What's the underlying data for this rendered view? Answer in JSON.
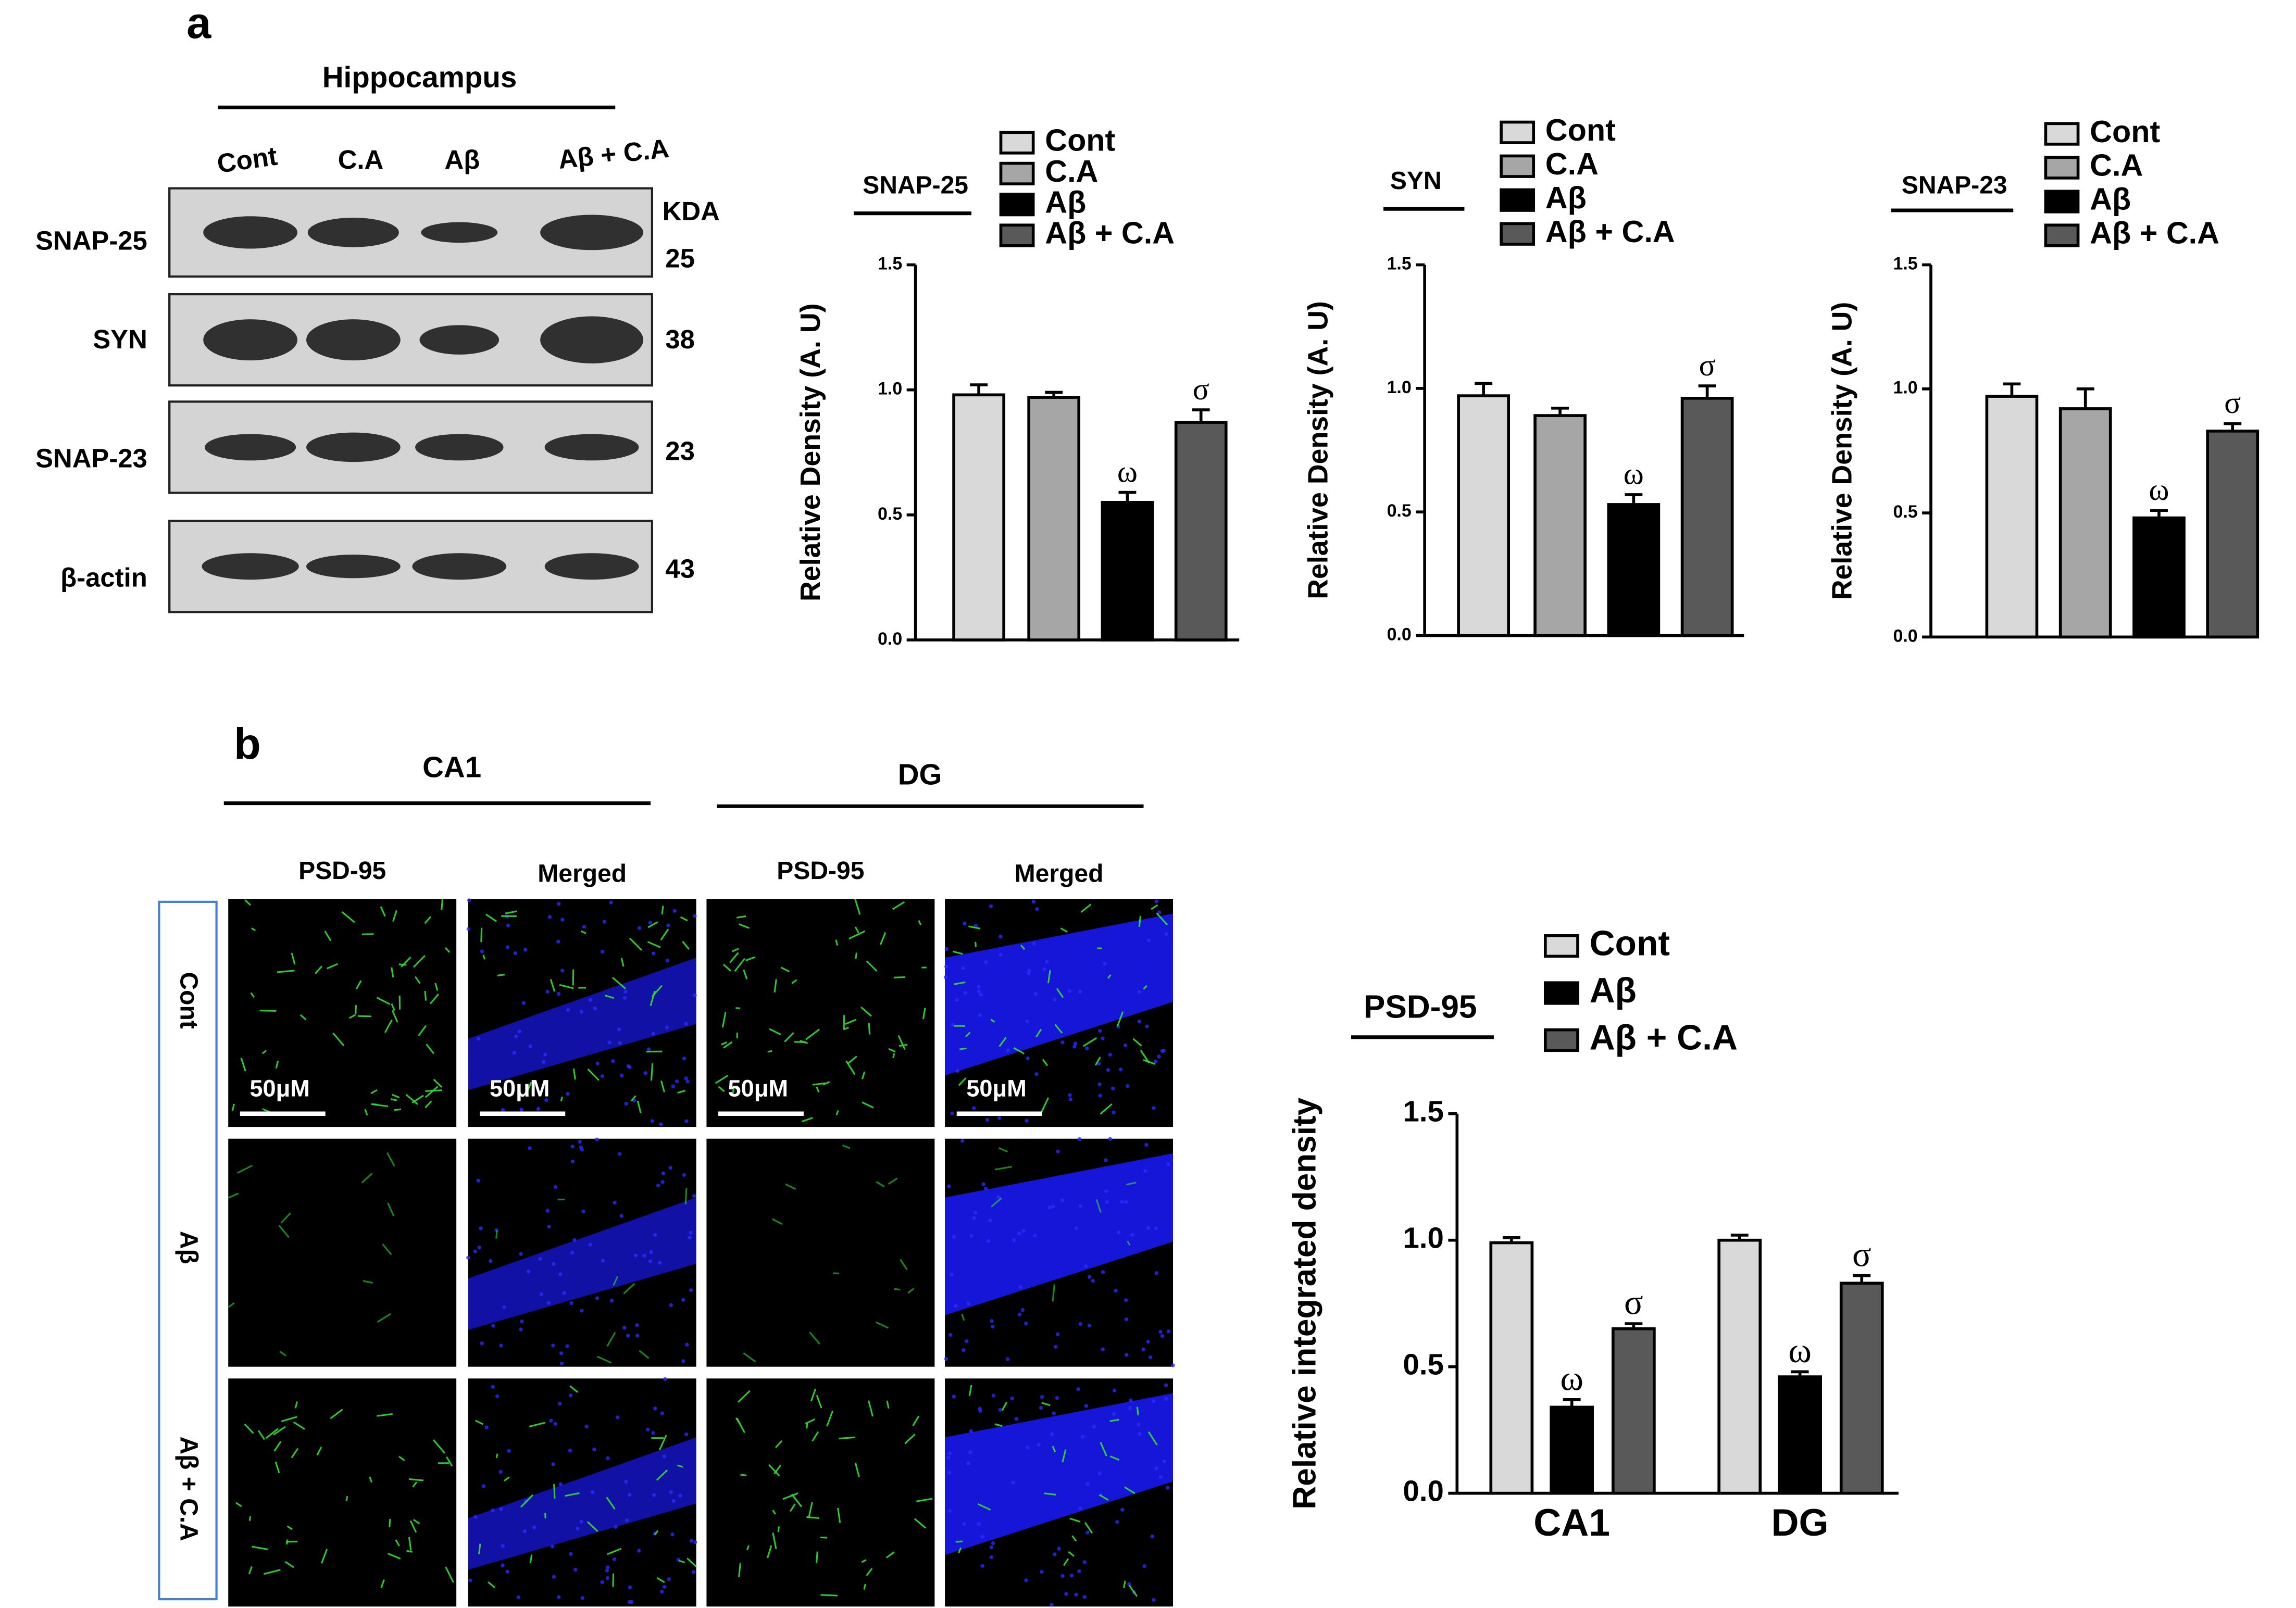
{
  "panel_labels": [
    "a",
    "b"
  ],
  "blot": {
    "region": "Hippocampus",
    "lanes": [
      "Cont",
      "C.A",
      "Aβ",
      "Aβ + C.A"
    ],
    "unit": "KDA",
    "rows": [
      {
        "label": "SNAP-25",
        "kda": "25"
      },
      {
        "label": "SYN",
        "kda": "38"
      },
      {
        "label": "SNAP-23",
        "kda": "23"
      },
      {
        "label": "β-actin",
        "kda": "43"
      }
    ]
  },
  "microscopy": {
    "regions": [
      "CA1",
      "DG"
    ],
    "columns": [
      "PSD-95",
      "Merged",
      "PSD-95",
      "Merged"
    ],
    "rows": [
      "Cont",
      "Aβ",
      "Aβ + C.A"
    ],
    "scale_bar": "50μM"
  },
  "chart_data": [
    {
      "type": "bar",
      "title": "SNAP-25",
      "ylabel": "Relative Density (A. U)",
      "categories": [
        null
      ],
      "ylim": [
        0,
        1.5
      ],
      "yticks": [
        {
          "value": 0,
          "label": "0.0"
        },
        0.5,
        {
          "value": 1,
          "label": "1.0"
        },
        1.5
      ],
      "series": [
        {
          "name": "Cont",
          "color": "#d9d9d9",
          "values": [
            0.98
          ],
          "errors": [
            0.04
          ],
          "labels": [
            null
          ]
        },
        {
          "name": "C.A",
          "color": "#a6a6a6",
          "values": [
            0.97
          ],
          "errors": [
            0.02
          ],
          "labels": [
            null
          ]
        },
        {
          "name": "Aβ",
          "color": "#000000",
          "values": [
            0.55
          ],
          "errors": [
            0.04
          ],
          "labels": [
            "ω"
          ]
        },
        {
          "name": "Aβ + C.A",
          "color": "#595959",
          "values": [
            0.87
          ],
          "errors": [
            0.05
          ],
          "labels": [
            "σ"
          ]
        }
      ]
    },
    {
      "type": "bar",
      "title": "SYN",
      "ylabel": "Relative Density (A. U)",
      "categories": [
        null
      ],
      "ylim": [
        0,
        1.5
      ],
      "yticks": [
        {
          "value": 0,
          "label": "0.0"
        },
        0.5,
        {
          "value": 1,
          "label": "1.0"
        },
        1.5
      ],
      "series": [
        {
          "name": "Cont",
          "color": "#d9d9d9",
          "values": [
            0.97
          ],
          "errors": [
            0.05
          ],
          "labels": [
            null
          ]
        },
        {
          "name": "C.A",
          "color": "#a6a6a6",
          "values": [
            0.89
          ],
          "errors": [
            0.03
          ],
          "labels": [
            null
          ]
        },
        {
          "name": "Aβ",
          "color": "#000000",
          "values": [
            0.53
          ],
          "errors": [
            0.04
          ],
          "labels": [
            "ω"
          ]
        },
        {
          "name": "Aβ + C.A",
          "color": "#595959",
          "values": [
            0.96
          ],
          "errors": [
            0.05
          ],
          "labels": [
            "σ"
          ]
        }
      ]
    },
    {
      "type": "bar",
      "title": "SNAP-23",
      "ylabel": "Relative Density (A. U)",
      "categories": [
        null
      ],
      "ylim": [
        0,
        1.5
      ],
      "yticks": [
        {
          "value": 0,
          "label": "0.0"
        },
        0.5,
        {
          "value": 1,
          "label": "1.0"
        },
        1.5
      ],
      "series": [
        {
          "name": "Cont",
          "color": "#d9d9d9",
          "values": [
            0.97
          ],
          "errors": [
            0.05
          ],
          "labels": [
            null
          ]
        },
        {
          "name": "C.A",
          "color": "#a6a6a6",
          "values": [
            0.92
          ],
          "errors": [
            0.08
          ],
          "labels": [
            null
          ]
        },
        {
          "name": "Aβ",
          "color": "#000000",
          "values": [
            0.48
          ],
          "errors": [
            0.03
          ],
          "labels": [
            "ω"
          ]
        },
        {
          "name": "Aβ + C.A",
          "color": "#595959",
          "values": [
            0.83
          ],
          "errors": [
            0.03
          ],
          "labels": [
            "σ"
          ]
        }
      ]
    },
    {
      "type": "bar",
      "title": "PSD-95",
      "ylabel": "Relative integrated density",
      "categories": [
        "CA1",
        "DG"
      ],
      "ylim": [
        0,
        1.5
      ],
      "yticks": [
        {
          "value": 0,
          "label": "0.0"
        },
        0.5,
        {
          "value": 1,
          "label": "1.0"
        },
        1.5
      ],
      "series": [
        {
          "name": "Cont",
          "color": "#d9d9d9",
          "values": [
            0.99,
            1.0
          ],
          "errors": [
            0.02,
            0.02
          ],
          "labels": [
            null,
            null
          ]
        },
        {
          "name": "Aβ",
          "color": "#000000",
          "values": [
            0.34,
            0.46
          ],
          "errors": [
            0.03,
            0.02
          ],
          "labels": [
            "ω",
            "ω"
          ]
        },
        {
          "name": "Aβ + C.A",
          "color": "#595959",
          "values": [
            0.65,
            0.83
          ],
          "errors": [
            0.02,
            0.03
          ],
          "labels": [
            "σ",
            "σ"
          ]
        }
      ]
    }
  ]
}
